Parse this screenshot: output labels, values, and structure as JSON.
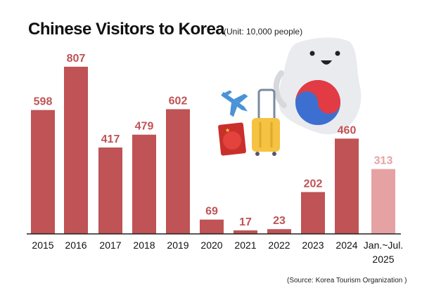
{
  "chart_data": {
    "type": "bar",
    "title": "Chinese Visitors to Korea",
    "unit": "(Unit: 10,000 people)",
    "source": "(Source: Korea Tourism Organization )",
    "categories": [
      "2015",
      "2016",
      "2017",
      "2018",
      "2019",
      "2020",
      "2021",
      "2022",
      "2023",
      "2024",
      "Jan.~Jul. 2025"
    ],
    "category_lines": [
      [
        "2015"
      ],
      [
        "2016"
      ],
      [
        "2017"
      ],
      [
        "2018"
      ],
      [
        "2019"
      ],
      [
        "2020"
      ],
      [
        "2021"
      ],
      [
        "2022"
      ],
      [
        "2023"
      ],
      [
        "2024"
      ],
      [
        "Jan.~Jul.",
        "2025"
      ]
    ],
    "values": [
      598,
      807,
      417,
      479,
      602,
      69,
      17,
      23,
      202,
      460,
      313
    ],
    "highlight_last": true,
    "colors": {
      "bar": "#bf5355",
      "bar_last": "#e6a2a3",
      "label": "#bf5355",
      "label_last": "#e6a2a3"
    },
    "ylim": [
      0,
      807
    ],
    "grid": false
  },
  "illustration": {
    "elements": [
      "korea-mascot-icon",
      "taeguk-icon",
      "airplane-icon",
      "suitcase-icon",
      "china-passport-icon"
    ]
  }
}
